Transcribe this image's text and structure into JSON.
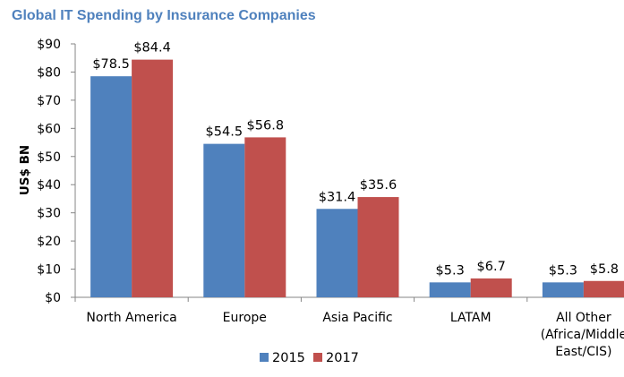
{
  "chart_data": {
    "type": "bar",
    "title": "Global IT Spending by Insurance Companies",
    "xlabel": "",
    "ylabel": "US$ BN",
    "ylim": [
      0,
      90
    ],
    "yticks": [
      0,
      10,
      20,
      30,
      40,
      50,
      60,
      70,
      80,
      90
    ],
    "ytick_labels": [
      "$0",
      "$10",
      "$20",
      "$30",
      "$40",
      "$50",
      "$60",
      "$70",
      "$80",
      "$90"
    ],
    "categories": [
      [
        "North America"
      ],
      [
        "Europe"
      ],
      [
        "Asia Pacific"
      ],
      [
        "LATAM"
      ],
      [
        "All Other",
        "(Africa/Middle",
        "East/CIS)"
      ]
    ],
    "series": [
      {
        "name": "2015",
        "color": "#4f81bd",
        "values": [
          78.5,
          54.5,
          31.4,
          5.3,
          5.3
        ],
        "labels": [
          "$78.5",
          "$54.5",
          "$31.4",
          "$5.3",
          "$5.3"
        ]
      },
      {
        "name": "2017",
        "color": "#c0504d",
        "values": [
          84.4,
          56.8,
          35.6,
          6.7,
          5.8
        ],
        "labels": [
          "$84.4",
          "$56.8",
          "$35.6",
          "$6.7",
          "$5.8"
        ]
      }
    ],
    "grid": false,
    "legend_position": "bottom",
    "axis_color": "#868686"
  }
}
